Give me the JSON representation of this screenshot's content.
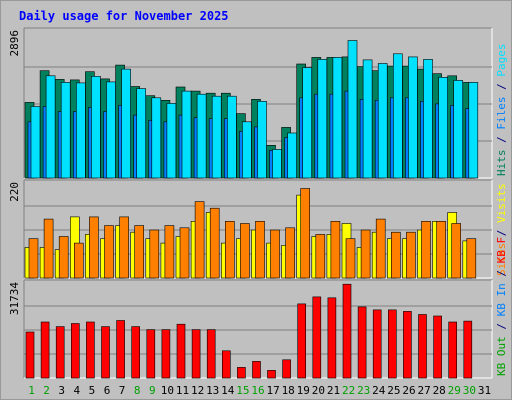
{
  "chart_data": {
    "type": "bar",
    "title": "Daily usage for November 2025",
    "colors": {
      "pages": "#00e0ff",
      "files": "#0080ff",
      "hits": "#00805c",
      "visits": "#ffff00",
      "sites": "#ff8000",
      "kb_in": "#ff0000",
      "kb_out": "#00a000",
      "background": "#c0c0c0",
      "plot_background": "#c0c0c0"
    },
    "days": [
      "1",
      "2",
      "3",
      "4",
      "5",
      "6",
      "7",
      "8",
      "9",
      "10",
      "11",
      "12",
      "13",
      "14",
      "15",
      "16",
      "17",
      "18",
      "19",
      "20",
      "21",
      "22",
      "23",
      "24",
      "25",
      "26",
      "27",
      "28",
      "29",
      "30",
      "31"
    ],
    "weekend_days": [
      "1",
      "2",
      "8",
      "9",
      "15",
      "16",
      "22",
      "23",
      "29",
      "30"
    ],
    "panels": [
      {
        "id": "usage",
        "ymax_label": "2896",
        "ymax": 2896,
        "right_labels": [
          {
            "text": "Pages",
            "color": "#00e0ff"
          },
          {
            "text": " / ",
            "color": "#000080"
          },
          {
            "text": "Files",
            "color": "#0080ff"
          },
          {
            "text": " / ",
            "color": "#000080"
          },
          {
            "text": "Hits",
            "color": "#00805c"
          }
        ],
        "series": [
          {
            "name": "Hits",
            "color": "#00805c",
            "values": [
              1480,
              2100,
              1930,
              1920,
              2080,
              1940,
              2210,
              1790,
              1610,
              1520,
              1780,
              1700,
              1660,
              1660,
              1260,
              1540,
              640,
              990,
              2230,
              2360,
              2360,
              2370,
              2180,
              2100,
              2190,
              2190,
              2130,
              2040,
              2000,
              1870,
              null
            ]
          },
          {
            "name": "Files",
            "color": "#0080ff",
            "values": [
              1100,
              1400,
              1300,
              1300,
              1380,
              1300,
              1420,
              1230,
              1130,
              1100,
              1230,
              1180,
              1160,
              1160,
              910,
              1000,
              540,
              790,
              1570,
              1640,
              1640,
              1700,
              1540,
              1520,
              1570,
              1570,
              1500,
              1450,
              1420,
              1360,
              null
            ]
          },
          {
            "name": "Pages",
            "color": "#00e0ff",
            "values": [
              1400,
              2000,
              1870,
              1860,
              1990,
              1880,
              2130,
              1750,
              1570,
              1460,
              1700,
              1640,
              1600,
              1600,
              1100,
              1500,
              560,
              880,
              2160,
              2320,
              2360,
              2690,
              2310,
              2240,
              2430,
              2370,
              2320,
              1970,
              1910,
              1870,
              null
            ]
          }
        ]
      },
      {
        "id": "visits",
        "ymax_label": "220",
        "ymax": 220,
        "right_labels": [
          {
            "text": "Visits",
            "color": "#ffff00"
          },
          {
            "text": " / ",
            "color": "#000080"
          },
          {
            "text": "Sites",
            "color": "#ff8000"
          }
        ],
        "series": [
          {
            "name": "Visits",
            "color": "#ffff00",
            "values": [
              70,
              70,
              65,
              140,
              100,
              90,
              120,
              105,
              90,
              80,
              95,
              130,
              150,
              80,
              90,
              110,
              80,
              75,
              190,
              95,
              100,
              125,
              70,
              105,
              90,
              90,
              110,
              130,
              150,
              85,
              null
            ]
          },
          {
            "name": "Sites",
            "color": "#ff8000",
            "values": [
              90,
              135,
              95,
              80,
              140,
              120,
              140,
              120,
              110,
              120,
              115,
              175,
              160,
              130,
              125,
              130,
              110,
              115,
              205,
              100,
              130,
              90,
              110,
              135,
              105,
              105,
              130,
              130,
              125,
              90,
              null
            ]
          }
        ]
      },
      {
        "id": "kbytes",
        "ymax_label": "31734",
        "ymax": 31734,
        "right_labels": [
          {
            "text": "KB F",
            "color": "#ff0000"
          },
          {
            "text": " / ",
            "color": "#000080"
          },
          {
            "text": "KB In",
            "color": "#0080ff"
          },
          {
            "text": " / ",
            "color": "#000080"
          },
          {
            "text": "KB Out",
            "color": "#00a000"
          }
        ],
        "series": [
          {
            "name": "KB F",
            "color": "#ff0000",
            "values": [
              15200,
              18500,
              17000,
              18000,
              18500,
              17000,
              19000,
              17000,
              16000,
              16000,
              17800,
              16000,
              16000,
              9000,
              3500,
              5500,
              2500,
              6000,
              24500,
              26800,
              26500,
              31000,
              23500,
              22500,
              22500,
              22000,
              21000,
              20500,
              18500,
              18800,
              null
            ]
          }
        ]
      }
    ]
  }
}
